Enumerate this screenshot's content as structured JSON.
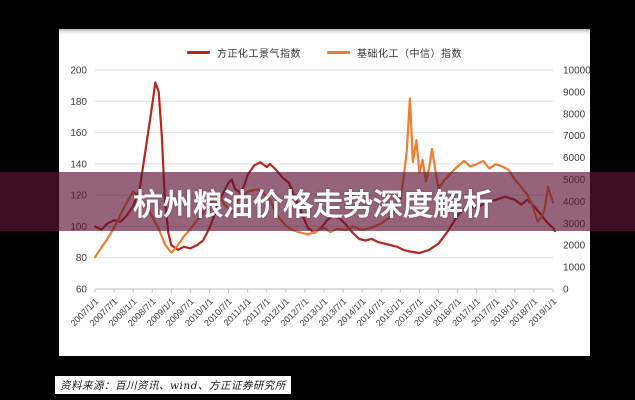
{
  "banner": {
    "title": "杭州粮油价格走势深度解析",
    "bg_color": "rgba(94,20,53,0.66)",
    "text_color": "#ffffff"
  },
  "source_bar": {
    "text": "资料来源：百川资讯、wind、方正证券研究所"
  },
  "colors": {
    "page_background": "#000000",
    "panel_background": "#ffffff",
    "gridline": "#dedede",
    "axis_line": "#bfbfbf",
    "axis_text": "#404040",
    "legend_text": "#333333"
  },
  "chart_data": {
    "type": "line",
    "title": "",
    "grid": true,
    "legend_position": "top",
    "left_axis": {
      "min": 60,
      "max": 200,
      "step": 20,
      "ticks": [
        200,
        180,
        160,
        140,
        120,
        100,
        80,
        60
      ]
    },
    "right_axis": {
      "min": 0,
      "max": 10000,
      "step": 1000,
      "ticks": [
        10000,
        9000,
        8000,
        7000,
        6000,
        5000,
        4000,
        3000,
        2000,
        1000,
        0
      ]
    },
    "x_ticks": [
      "2007/1/1",
      "2007/7/1",
      "2008/1/1",
      "2008/7/1",
      "2009/1/1",
      "2009/7/1",
      "2010/1/1",
      "2010/7/1",
      "2011/1/1",
      "2011/7/1",
      "2012/1/1",
      "2012/7/1",
      "2013/1/1",
      "2013/7/1",
      "2014/1/1",
      "2014/7/1",
      "2015/1/1",
      "2015/7/1",
      "2016/1/1",
      "2016/7/1",
      "2017/1/1",
      "2017/7/1",
      "2018/1/1",
      "2018/7/1",
      "2019/1/1"
    ],
    "x_unit": "years_since_2007_01",
    "series": [
      {
        "name": "方正化工景气指数",
        "color": "#b7271d",
        "axis": "left",
        "points": [
          [
            0,
            100
          ],
          [
            0.17,
            98
          ],
          [
            0.33,
            102
          ],
          [
            0.5,
            104
          ],
          [
            0.67,
            103
          ],
          [
            0.83,
            107
          ],
          [
            1,
            113
          ],
          [
            1.17,
            124
          ],
          [
            1.33,
            150
          ],
          [
            1.5,
            178
          ],
          [
            1.58,
            192
          ],
          [
            1.67,
            186
          ],
          [
            1.75,
            158
          ],
          [
            1.83,
            118
          ],
          [
            1.92,
            96
          ],
          [
            2,
            88
          ],
          [
            2.17,
            85
          ],
          [
            2.33,
            87
          ],
          [
            2.5,
            86
          ],
          [
            2.67,
            88
          ],
          [
            2.83,
            91
          ],
          [
            3,
            99
          ],
          [
            3.17,
            110
          ],
          [
            3.33,
            120
          ],
          [
            3.5,
            128
          ],
          [
            3.58,
            130
          ],
          [
            3.67,
            124
          ],
          [
            3.83,
            121
          ],
          [
            3.92,
            127
          ],
          [
            4,
            133
          ],
          [
            4.17,
            139
          ],
          [
            4.33,
            141
          ],
          [
            4.5,
            138
          ],
          [
            4.58,
            140
          ],
          [
            4.75,
            136
          ],
          [
            4.92,
            131
          ],
          [
            5.08,
            128
          ],
          [
            5.25,
            118
          ],
          [
            5.42,
            108
          ],
          [
            5.58,
            99
          ],
          [
            5.75,
            96
          ],
          [
            5.92,
            99
          ],
          [
            6.08,
            104
          ],
          [
            6.25,
            107
          ],
          [
            6.42,
            105
          ],
          [
            6.58,
            101
          ],
          [
            6.75,
            96
          ],
          [
            6.92,
            92
          ],
          [
            7.08,
            91
          ],
          [
            7.25,
            92
          ],
          [
            7.42,
            90
          ],
          [
            7.58,
            89
          ],
          [
            7.75,
            88
          ],
          [
            7.92,
            87
          ],
          [
            8.08,
            85
          ],
          [
            8.25,
            84
          ],
          [
            8.5,
            83
          ],
          [
            8.75,
            85
          ],
          [
            9,
            89
          ],
          [
            9.25,
            97
          ],
          [
            9.5,
            107
          ],
          [
            9.75,
            113
          ],
          [
            10,
            112
          ],
          [
            10.25,
            115
          ],
          [
            10.5,
            117
          ],
          [
            10.75,
            119
          ],
          [
            11,
            117
          ],
          [
            11.17,
            114
          ],
          [
            11.33,
            117
          ],
          [
            11.5,
            113
          ],
          [
            11.67,
            108
          ],
          [
            11.83,
            103
          ],
          [
            12,
            99
          ],
          [
            12.05,
            97
          ]
        ]
      },
      {
        "name": "基础化工（中信）指数",
        "color": "#ED7D31",
        "axis": "right",
        "points": [
          [
            0,
            1450
          ],
          [
            0.17,
            1900
          ],
          [
            0.33,
            2300
          ],
          [
            0.5,
            2800
          ],
          [
            0.67,
            3400
          ],
          [
            0.83,
            3950
          ],
          [
            1,
            4450
          ],
          [
            1.17,
            4150
          ],
          [
            1.33,
            3850
          ],
          [
            1.5,
            3300
          ],
          [
            1.67,
            2750
          ],
          [
            1.83,
            2050
          ],
          [
            2,
            1650
          ],
          [
            2.17,
            2000
          ],
          [
            2.33,
            2400
          ],
          [
            2.5,
            2750
          ],
          [
            2.75,
            3300
          ],
          [
            3,
            3850
          ],
          [
            3.25,
            4270
          ],
          [
            3.42,
            3800
          ],
          [
            3.58,
            3500
          ],
          [
            3.75,
            4050
          ],
          [
            4,
            4450
          ],
          [
            4.25,
            4550
          ],
          [
            4.42,
            4350
          ],
          [
            4.58,
            4100
          ],
          [
            4.75,
            3400
          ],
          [
            5,
            2900
          ],
          [
            5.17,
            2700
          ],
          [
            5.33,
            2600
          ],
          [
            5.58,
            2500
          ],
          [
            5.75,
            2600
          ],
          [
            6,
            2800
          ],
          [
            6.17,
            2600
          ],
          [
            6.33,
            2750
          ],
          [
            6.58,
            2700
          ],
          [
            6.75,
            2850
          ],
          [
            7,
            2700
          ],
          [
            7.25,
            2800
          ],
          [
            7.5,
            3000
          ],
          [
            7.75,
            3300
          ],
          [
            8,
            4100
          ],
          [
            8.08,
            5000
          ],
          [
            8.17,
            6300
          ],
          [
            8.25,
            8700
          ],
          [
            8.33,
            5800
          ],
          [
            8.42,
            6800
          ],
          [
            8.5,
            5300
          ],
          [
            8.58,
            5900
          ],
          [
            8.67,
            4900
          ],
          [
            8.75,
            5500
          ],
          [
            8.83,
            6400
          ],
          [
            8.92,
            5400
          ],
          [
            9,
            4600
          ],
          [
            9.17,
            5000
          ],
          [
            9.33,
            5300
          ],
          [
            9.5,
            5600
          ],
          [
            9.67,
            5850
          ],
          [
            9.83,
            5600
          ],
          [
            10,
            5700
          ],
          [
            10.17,
            5850
          ],
          [
            10.33,
            5500
          ],
          [
            10.5,
            5700
          ],
          [
            10.67,
            5600
          ],
          [
            10.83,
            5450
          ],
          [
            11,
            5000
          ],
          [
            11.17,
            4650
          ],
          [
            11.33,
            4300
          ],
          [
            11.45,
            3850
          ],
          [
            11.6,
            3080
          ],
          [
            11.7,
            3300
          ],
          [
            11.78,
            3600
          ],
          [
            11.87,
            4680
          ],
          [
            12,
            3950
          ]
        ]
      }
    ]
  }
}
